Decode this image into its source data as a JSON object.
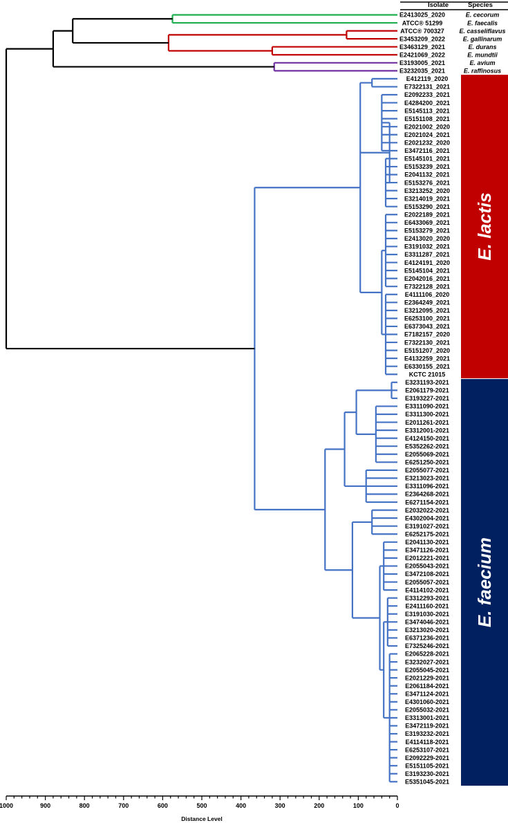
{
  "header": {
    "isolate": "Isolate",
    "species": "Species"
  },
  "colors": {
    "outgroup": "#000000",
    "green": "#1fae4d",
    "red": "#c00000",
    "purple": "#7030a0",
    "blue": "#4472c4",
    "lactis_bar": "#c00000",
    "faecium_bar": "#002060"
  },
  "axis": {
    "label": "Distance Level",
    "ticks": [
      "1000",
      "900",
      "800",
      "700",
      "600",
      "500",
      "400",
      "300",
      "200",
      "100",
      "0"
    ],
    "range": [
      1000,
      0
    ]
  },
  "groups": [
    {
      "label": "E. lactis",
      "color": "lactis_bar"
    },
    {
      "label": "E. faecium",
      "color": "faecium_bar"
    }
  ],
  "outgroup_leaves": [
    {
      "isolate": "E2413025_2020",
      "species": "E. cecorum"
    },
    {
      "isolate": "ATCC® 51299",
      "species": "E. faecalis"
    },
    {
      "isolate": "ATCC® 700327",
      "species": "E. casseliflavus"
    },
    {
      "isolate": "E3453209_2022",
      "species": "E. gallinarum"
    },
    {
      "isolate": "E3463129_2021",
      "species": "E. durans"
    },
    {
      "isolate": "E2421069_2022",
      "species": "E. mundtii"
    },
    {
      "isolate": "E3193005_2021",
      "species": "E. avium"
    },
    {
      "isolate": "E3232035_2021",
      "species": "E. raffinosus"
    }
  ],
  "lactis_leaves": [
    "E412119_2020",
    "E7322131_2021",
    "E2092233_2021",
    "E4284200_2021",
    "E5145113_2021",
    "E5151108_2021",
    "E2021002_2020",
    "E2021024_2021",
    "E2021232_2020",
    "E3472116_2021",
    "E5145101_2021",
    "E5153239_2021",
    "E2041132_2021",
    "E5153276_2021",
    "E3213252_2020",
    "E3214019_2021",
    "E5153290_2021",
    "E2022189_2021",
    "E6433069_2021",
    "E5153279_2021",
    "E2413020_2020",
    "E3191032_2021",
    "E3311287_2021",
    "E4124191_2020",
    "E5145104_2021",
    "E2042016_2021",
    "E7322128_2021",
    "E4111106_2020",
    "E2364249_2021",
    "E3212095_2021",
    "E6253100_2021",
    "E6373043_2021",
    "E7182157_2020",
    "E7322130_2021",
    "E5151207_2020",
    "E4132259_2021",
    "E6330155_2021",
    "KCTC 21015"
  ],
  "faecium_leaves": [
    "E3231193-2021",
    "E2061179-2021",
    "E3193227-2021",
    "E3311090-2021",
    "E3311300-2021",
    "E2011261-2021",
    "E3312001-2021",
    "E4124150-2021",
    "E5352262-2021",
    "E2055069-2021",
    "E6251250-2021",
    "E2055077-2021",
    "E3213023-2021",
    "E3311096-2021",
    "E2364268-2021",
    "E6271154-2021",
    "E2032022-2021",
    "E4302004-2021",
    "E3191027-2021",
    "E6252175-2021",
    "E2041130-2021",
    "E3471126-2021",
    "E2012221-2021",
    "E2055043-2021",
    "E3472108-2021",
    "E2055057-2021",
    "E4114102-2021",
    "E3312293-2021",
    "E2411160-2021",
    "E3191030-2021",
    "E3474046-2021",
    "E3213020-2021",
    "E6371236-2021",
    "E7325246-2021",
    "E2065228-2021",
    "E3232027-2021",
    "E2055045-2021",
    "E2021229-2021",
    "E2061184-2021",
    "E3471124-2021",
    "E4301060-2021",
    "E2055032-2021",
    "E3313001-2021",
    "E3472119-2021",
    "E3193232-2021",
    "E4114118-2021",
    "E6253107-2021",
    "E2092229-2021",
    "E5151105-2021",
    "E3193230-2021",
    "E5351045-2021"
  ],
  "tree": {
    "root": 1000,
    "ingroup_split": 365,
    "outgroup": {
      "h": 880,
      "children": [
        {
          "h": 830,
          "children": [
            {
              "h": 575,
              "color": "green",
              "children": [
                0,
                1
              ]
            },
            {
              "h": 585,
              "color": "red",
              "children": [
                {
                  "h": 130,
                  "children": [
                    2,
                    3
                  ]
                },
                {
                  "h": 320,
                  "children": [
                    4,
                    5
                  ]
                }
              ]
            }
          ]
        },
        {
          "h": 315,
          "color": "purple",
          "children": [
            6,
            7
          ]
        }
      ]
    },
    "lactis": {
      "h": 95,
      "children": [
        {
          "h": 65,
          "children": [
            0,
            1
          ]
        },
        {
          "h": 20,
          "children": [
            {
              "h": 40,
              "children": [
                2,
                3,
                4,
                5,
                6,
                7,
                8,
                9
              ]
            },
            {
              "h": 30,
              "children": [
                10,
                11,
                12,
                13,
                14,
                15,
                16
              ]
            }
          ]
        },
        {
          "h": 40,
          "children": [
            {
              "h": 30,
              "children": [
                17,
                18,
                19,
                20,
                21,
                22,
                23,
                24,
                25,
                26
              ]
            },
            {
              "h": 30,
              "children": [
                27,
                28,
                29,
                30,
                31,
                32,
                33,
                34,
                35,
                36,
                37
              ]
            }
          ]
        }
      ]
    },
    "faecium": {
      "h": 185,
      "children": [
        {
          "h": 135,
          "children": [
            {
              "h": 105,
              "children": [
                {
                  "h": 15,
                  "children": [
                    0,
                    1,
                    2
                  ]
                },
                {
                  "h": 55,
                  "children": [
                    3,
                    4,
                    5,
                    6,
                    7,
                    8,
                    9,
                    10
                  ]
                }
              ]
            },
            {
              "h": 80,
              "children": [
                11,
                12,
                13,
                14,
                15
              ]
            }
          ]
        },
        {
          "h": 115,
          "children": [
            {
              "h": 65,
              "children": [
                16,
                17,
                18,
                19
              ]
            },
            {
              "h": 45,
              "children": [
                {
                  "h": 35,
                  "children": [
                    20,
                    21,
                    22,
                    23,
                    24,
                    25,
                    26
                  ]
                },
                {
                  "h": 35,
                  "children": [
                    {
                      "h": 25,
                      "children": [
                        27,
                        28,
                        29,
                        30,
                        31,
                        32,
                        33
                      ]
                    },
                    {
                      "h": 20,
                      "children": [
                        34,
                        35,
                        36,
                        37,
                        38,
                        39,
                        40,
                        41,
                        42,
                        43,
                        44,
                        45,
                        46,
                        47,
                        48,
                        49,
                        50
                      ]
                    }
                  ]
                }
              ]
            }
          ]
        }
      ]
    }
  }
}
